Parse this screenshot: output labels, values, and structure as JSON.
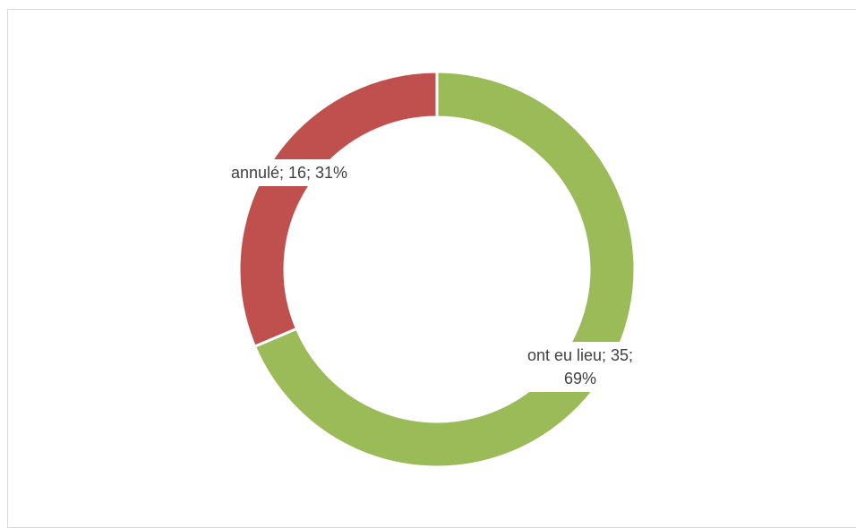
{
  "chart_data": {
    "type": "pie",
    "donut": true,
    "values": [
      35,
      16
    ],
    "value_labels": [
      "ont eu lieu; 35; 69%",
      "annulé; 16; 31%"
    ],
    "colors": [
      "#9bbb59",
      "#c0504d"
    ]
  }
}
